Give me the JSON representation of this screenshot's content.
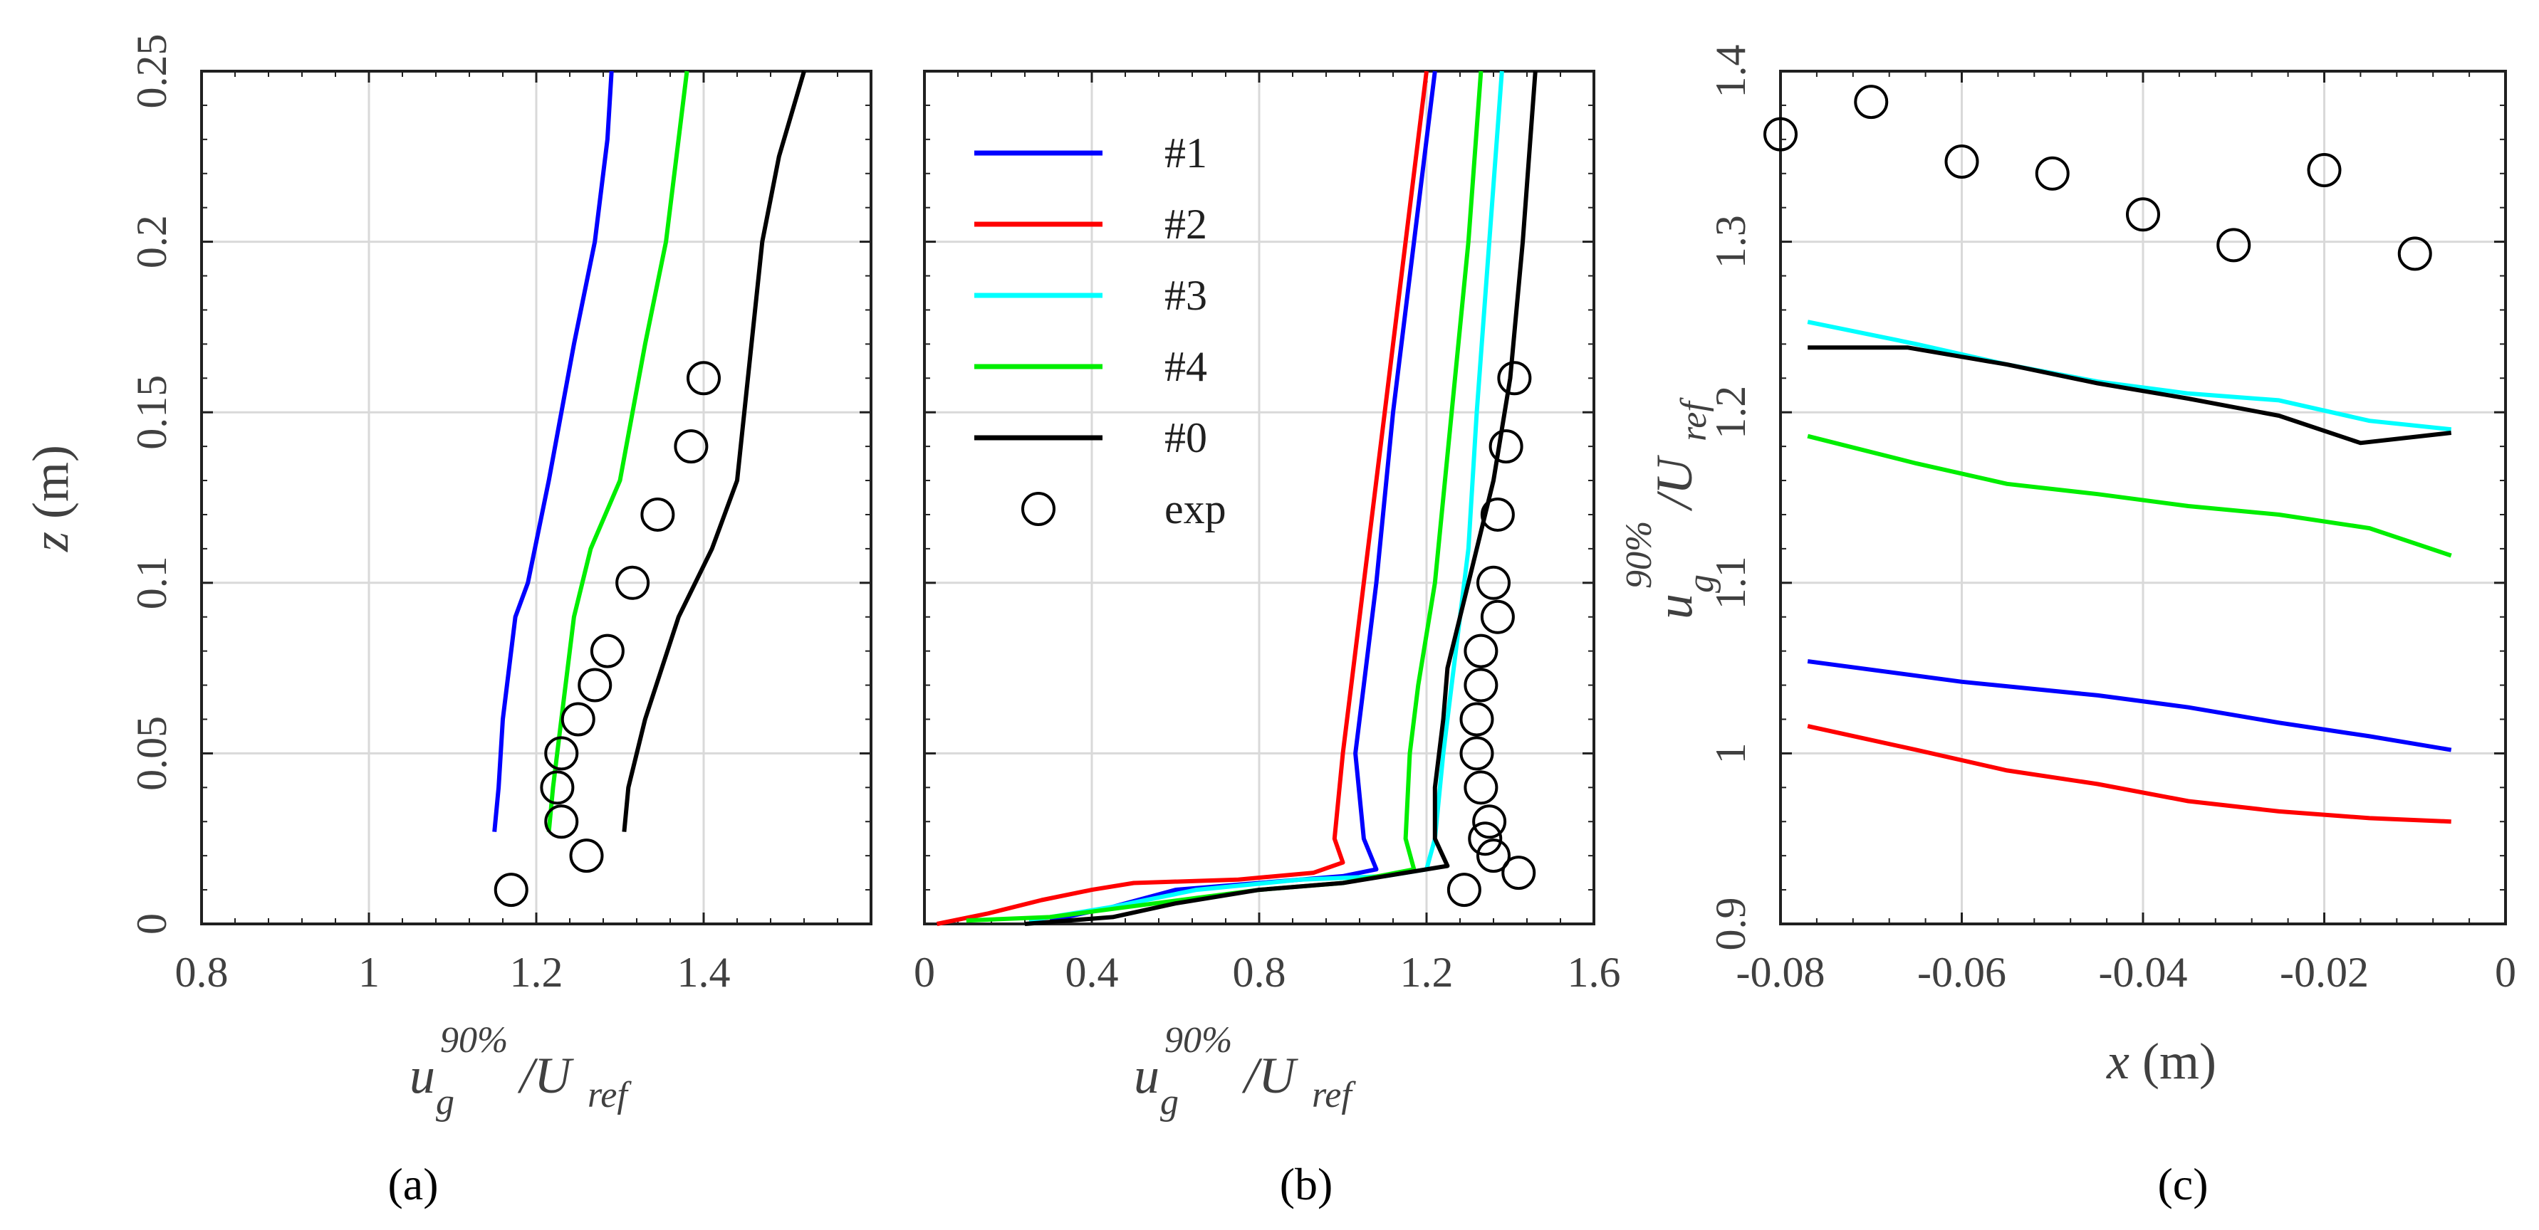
{
  "figure": {
    "panel_labels": [
      "(a)",
      "(b)",
      "(c)"
    ]
  },
  "colors": {
    "#1": "#0000ff",
    "#2": "#ff0000",
    "#3": "#00ffff",
    "#4": "#00ee00",
    "#0": "#000000",
    "exp": "#000000"
  },
  "chart_data": [
    {
      "id": "a",
      "type": "line",
      "panel_label": "(a)",
      "xlabel": "u_g^{90%}/U_ref",
      "ylabel": "z (m)",
      "xlim": [
        0.8,
        1.6
      ],
      "ylim": [
        0,
        0.25
      ],
      "xticks": [
        0.8,
        1,
        1.2,
        1.4
      ],
      "xtick_labels": [
        "0.8",
        "1",
        "1.2",
        "1.4"
      ],
      "yticks": [
        0,
        0.05,
        0.1,
        0.15,
        0.2,
        0.25
      ],
      "ytick_labels": [
        "0",
        "0.05",
        "0.1",
        "0.15",
        "0.2",
        "0.25"
      ],
      "series": [
        {
          "name": "#1",
          "color": "#0000ff",
          "points": [
            [
              1.15,
              0.027
            ],
            [
              1.155,
              0.04
            ],
            [
              1.16,
              0.06
            ],
            [
              1.175,
              0.09
            ],
            [
              1.19,
              0.1
            ],
            [
              1.215,
              0.13
            ],
            [
              1.245,
              0.17
            ],
            [
              1.27,
              0.2
            ],
            [
              1.285,
              0.23
            ],
            [
              1.29,
              0.25
            ]
          ]
        },
        {
          "name": "#4",
          "color": "#00ee00",
          "points": [
            [
              1.215,
              0.027
            ],
            [
              1.22,
              0.04
            ],
            [
              1.23,
              0.06
            ],
            [
              1.245,
              0.09
            ],
            [
              1.265,
              0.11
            ],
            [
              1.3,
              0.13
            ],
            [
              1.33,
              0.17
            ],
            [
              1.355,
              0.2
            ],
            [
              1.37,
              0.23
            ],
            [
              1.38,
              0.25
            ]
          ]
        },
        {
          "name": "#0",
          "color": "#000000",
          "points": [
            [
              1.305,
              0.027
            ],
            [
              1.31,
              0.04
            ],
            [
              1.33,
              0.06
            ],
            [
              1.37,
              0.09
            ],
            [
              1.41,
              0.11
            ],
            [
              1.44,
              0.13
            ],
            [
              1.47,
              0.2
            ],
            [
              1.49,
              0.225
            ],
            [
              1.52,
              0.25
            ]
          ]
        },
        {
          "name": "exp",
          "color": "#000000",
          "marker": "o",
          "points": [
            [
              1.17,
              0.01
            ],
            [
              1.26,
              0.02
            ],
            [
              1.23,
              0.03
            ],
            [
              1.225,
              0.04
            ],
            [
              1.23,
              0.05
            ],
            [
              1.25,
              0.06
            ],
            [
              1.27,
              0.07
            ],
            [
              1.285,
              0.08
            ],
            [
              1.315,
              0.1
            ],
            [
              1.345,
              0.12
            ],
            [
              1.385,
              0.14
            ],
            [
              1.4,
              0.16
            ]
          ]
        }
      ]
    },
    {
      "id": "b",
      "type": "line",
      "panel_label": "(b)",
      "xlabel": "u_g^{90%}/U_ref",
      "ylabel": "",
      "xlim": [
        0,
        1.6
      ],
      "ylim": [
        0,
        0.25
      ],
      "xticks": [
        0,
        0.4,
        0.8,
        1.2,
        1.6
      ],
      "xtick_labels": [
        "0",
        "0.4",
        "0.8",
        "1.2",
        "1.6"
      ],
      "legend": [
        "#1",
        "#2",
        "#3",
        "#4",
        "#0",
        "exp"
      ],
      "legend_position": "top-left",
      "series": [
        {
          "name": "#2",
          "color": "#ff0000",
          "points": [
            [
              0.03,
              0
            ],
            [
              0.15,
              0.003
            ],
            [
              0.28,
              0.007
            ],
            [
              0.4,
              0.01
            ],
            [
              0.5,
              0.012
            ],
            [
              0.75,
              0.013
            ],
            [
              0.93,
              0.015
            ],
            [
              1.0,
              0.018
            ],
            [
              0.98,
              0.025
            ],
            [
              1.0,
              0.05
            ],
            [
              1.02,
              0.07
            ],
            [
              1.05,
              0.1
            ],
            [
              1.1,
              0.15
            ],
            [
              1.15,
              0.2
            ],
            [
              1.2,
              0.25
            ]
          ]
        },
        {
          "name": "#1",
          "color": "#0000ff",
          "points": [
            [
              0.3,
              0.001
            ],
            [
              0.45,
              0.005
            ],
            [
              0.6,
              0.01
            ],
            [
              0.8,
              0.012
            ],
            [
              1.0,
              0.014
            ],
            [
              1.08,
              0.016
            ],
            [
              1.05,
              0.025
            ],
            [
              1.03,
              0.05
            ],
            [
              1.05,
              0.07
            ],
            [
              1.08,
              0.1
            ],
            [
              1.12,
              0.15
            ],
            [
              1.17,
              0.2
            ],
            [
              1.22,
              0.25
            ]
          ]
        },
        {
          "name": "#3",
          "color": "#00ffff",
          "points": [
            [
              0.25,
              0.001
            ],
            [
              0.45,
              0.005
            ],
            [
              0.65,
              0.01
            ],
            [
              0.9,
              0.013
            ],
            [
              1.1,
              0.014
            ],
            [
              1.2,
              0.016
            ],
            [
              1.22,
              0.025
            ],
            [
              1.24,
              0.05
            ],
            [
              1.27,
              0.08
            ],
            [
              1.3,
              0.11
            ],
            [
              1.32,
              0.15
            ],
            [
              1.35,
              0.2
            ],
            [
              1.38,
              0.25
            ]
          ]
        },
        {
          "name": "#4",
          "color": "#00ee00",
          "points": [
            [
              0.1,
              0.001
            ],
            [
              0.3,
              0.002
            ],
            [
              0.55,
              0.006
            ],
            [
              0.8,
              0.01
            ],
            [
              1.0,
              0.012
            ],
            [
              1.17,
              0.016
            ],
            [
              1.15,
              0.025
            ],
            [
              1.16,
              0.05
            ],
            [
              1.18,
              0.07
            ],
            [
              1.22,
              0.1
            ],
            [
              1.26,
              0.15
            ],
            [
              1.3,
              0.2
            ],
            [
              1.33,
              0.25
            ]
          ]
        },
        {
          "name": "#0",
          "color": "#000000",
          "points": [
            [
              0.24,
              0
            ],
            [
              0.45,
              0.002
            ],
            [
              0.6,
              0.006
            ],
            [
              0.8,
              0.01
            ],
            [
              1.0,
              0.012
            ],
            [
              1.1,
              0.014
            ],
            [
              1.25,
              0.017
            ],
            [
              1.22,
              0.025
            ],
            [
              1.22,
              0.04
            ],
            [
              1.24,
              0.06
            ],
            [
              1.25,
              0.075
            ],
            [
              1.3,
              0.1
            ],
            [
              1.36,
              0.13
            ],
            [
              1.4,
              0.16
            ],
            [
              1.43,
              0.2
            ],
            [
              1.46,
              0.25
            ]
          ]
        },
        {
          "name": "exp",
          "color": "#000000",
          "marker": "o",
          "points": [
            [
              1.29,
              0.01
            ],
            [
              1.42,
              0.015
            ],
            [
              1.36,
              0.02
            ],
            [
              1.34,
              0.025
            ],
            [
              1.35,
              0.03
            ],
            [
              1.33,
              0.04
            ],
            [
              1.32,
              0.05
            ],
            [
              1.32,
              0.06
            ],
            [
              1.33,
              0.07
            ],
            [
              1.33,
              0.08
            ],
            [
              1.37,
              0.09
            ],
            [
              1.36,
              0.1
            ],
            [
              1.37,
              0.12
            ],
            [
              1.39,
              0.14
            ],
            [
              1.41,
              0.16
            ]
          ]
        }
      ]
    },
    {
      "id": "c",
      "type": "line",
      "panel_label": "(c)",
      "xlabel": "x (m)",
      "ylabel": "u_g^{90%}/U_ref",
      "xlim": [
        -0.08,
        0
      ],
      "ylim": [
        0.9,
        1.4
      ],
      "xticks": [
        -0.08,
        -0.06,
        -0.04,
        -0.02,
        0
      ],
      "xtick_labels": [
        "-0.08",
        "-0.06",
        "-0.04",
        "-0.02",
        "0"
      ],
      "yticks": [
        0.9,
        1.0,
        1.1,
        1.2,
        1.3,
        1.4
      ],
      "ytick_labels": [
        "0.9",
        "1",
        "1.1",
        "1.2",
        "1.3",
        "1.4"
      ],
      "series": [
        {
          "name": "exp",
          "color": "#000000",
          "marker": "o",
          "points": [
            [
              -0.08,
              1.363
            ],
            [
              -0.07,
              1.382
            ],
            [
              -0.06,
              1.347
            ],
            [
              -0.05,
              1.34
            ],
            [
              -0.04,
              1.316
            ],
            [
              -0.03,
              1.298
            ],
            [
              -0.02,
              1.342
            ],
            [
              -0.01,
              1.293
            ]
          ]
        },
        {
          "name": "#3",
          "color": "#00ffff",
          "points": [
            [
              -0.077,
              1.253
            ],
            [
              -0.065,
              1.24
            ],
            [
              -0.055,
              1.228
            ],
            [
              -0.045,
              1.218
            ],
            [
              -0.035,
              1.211
            ],
            [
              -0.025,
              1.207
            ],
            [
              -0.015,
              1.195
            ],
            [
              -0.006,
              1.19
            ]
          ]
        },
        {
          "name": "#0",
          "color": "#000000",
          "points": [
            [
              -0.077,
              1.238
            ],
            [
              -0.066,
              1.238
            ],
            [
              -0.055,
              1.228
            ],
            [
              -0.045,
              1.217
            ],
            [
              -0.035,
              1.208
            ],
            [
              -0.025,
              1.198
            ],
            [
              -0.016,
              1.182
            ],
            [
              -0.006,
              1.188
            ]
          ]
        },
        {
          "name": "#4",
          "color": "#00ee00",
          "points": [
            [
              -0.077,
              1.186
            ],
            [
              -0.065,
              1.17
            ],
            [
              -0.055,
              1.158
            ],
            [
              -0.045,
              1.152
            ],
            [
              -0.035,
              1.145
            ],
            [
              -0.025,
              1.14
            ],
            [
              -0.015,
              1.132
            ],
            [
              -0.006,
              1.116
            ]
          ]
        },
        {
          "name": "#1",
          "color": "#0000ff",
          "points": [
            [
              -0.077,
              1.054
            ],
            [
              -0.06,
              1.042
            ],
            [
              -0.045,
              1.034
            ],
            [
              -0.035,
              1.027
            ],
            [
              -0.025,
              1.018
            ],
            [
              -0.015,
              1.01
            ],
            [
              -0.006,
              1.002
            ]
          ]
        },
        {
          "name": "#2",
          "color": "#ff0000",
          "points": [
            [
              -0.077,
              1.016
            ],
            [
              -0.065,
              1.002
            ],
            [
              -0.055,
              0.99
            ],
            [
              -0.045,
              0.982
            ],
            [
              -0.035,
              0.972
            ],
            [
              -0.025,
              0.966
            ],
            [
              -0.015,
              0.962
            ],
            [
              -0.006,
              0.96
            ]
          ]
        }
      ]
    }
  ]
}
